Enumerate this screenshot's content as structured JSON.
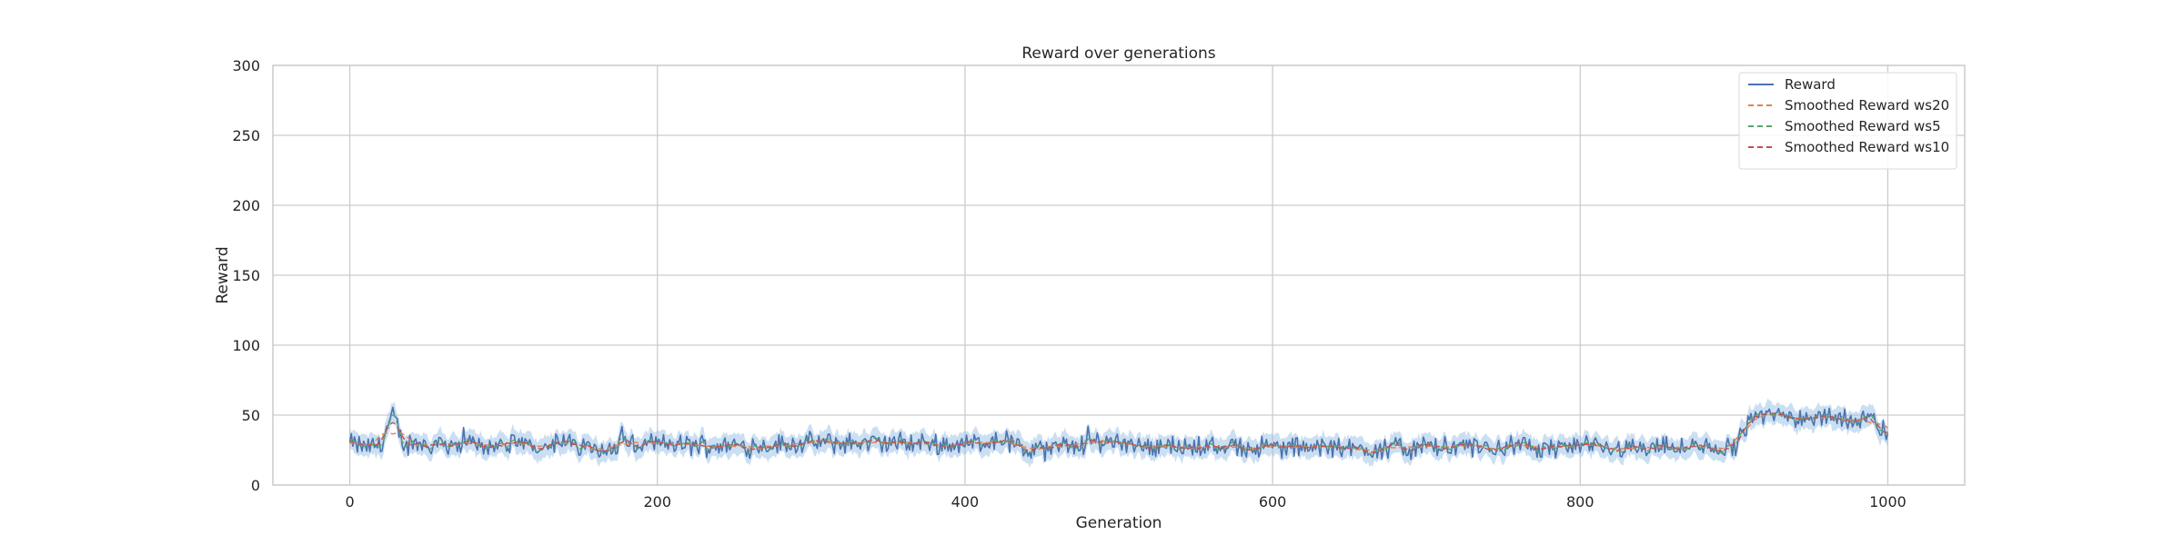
{
  "chart_data": {
    "type": "line",
    "title": "Reward over generations",
    "xlabel": "Generation",
    "ylabel": "Reward",
    "xlim": [
      -50,
      1050
    ],
    "ylim": [
      0,
      300
    ],
    "xticks": [
      0,
      200,
      400,
      600,
      800,
      1000
    ],
    "yticks": [
      0,
      50,
      100,
      150,
      200,
      250,
      300
    ],
    "grid": true,
    "legend_position": "top-right",
    "band": {
      "color": "#a1c4e8",
      "half_width": 6
    },
    "reward_profile": [
      [
        0,
        30
      ],
      [
        10,
        27
      ],
      [
        20,
        29
      ],
      [
        28,
        50
      ],
      [
        35,
        28
      ],
      [
        60,
        30
      ],
      [
        100,
        28
      ],
      [
        140,
        30
      ],
      [
        174,
        25
      ],
      [
        176,
        40
      ],
      [
        180,
        28
      ],
      [
        200,
        29
      ],
      [
        260,
        28
      ],
      [
        300,
        30
      ],
      [
        360,
        30
      ],
      [
        400,
        29
      ],
      [
        425,
        33
      ],
      [
        440,
        24
      ],
      [
        480,
        30
      ],
      [
        500,
        32
      ],
      [
        520,
        28
      ],
      [
        600,
        27
      ],
      [
        650,
        26
      ],
      [
        700,
        27
      ],
      [
        760,
        27
      ],
      [
        800,
        27
      ],
      [
        860,
        27
      ],
      [
        900,
        26
      ],
      [
        910,
        48
      ],
      [
        930,
        50
      ],
      [
        960,
        48
      ],
      [
        990,
        47
      ],
      [
        1000,
        35
      ]
    ],
    "series": [
      {
        "name": "Reward",
        "color": "#4c72b0",
        "dash": "solid",
        "window": 1
      },
      {
        "name": "Smoothed Reward ws20",
        "color": "#dd8452",
        "dash": "dashed",
        "window": 20
      },
      {
        "name": "Smoothed Reward ws5",
        "color": "#55a868",
        "dash": "dashed",
        "window": 5
      },
      {
        "name": "Smoothed Reward ws10",
        "color": "#c44e52",
        "dash": "dashed",
        "window": 10
      }
    ],
    "n_generations": 1001
  }
}
